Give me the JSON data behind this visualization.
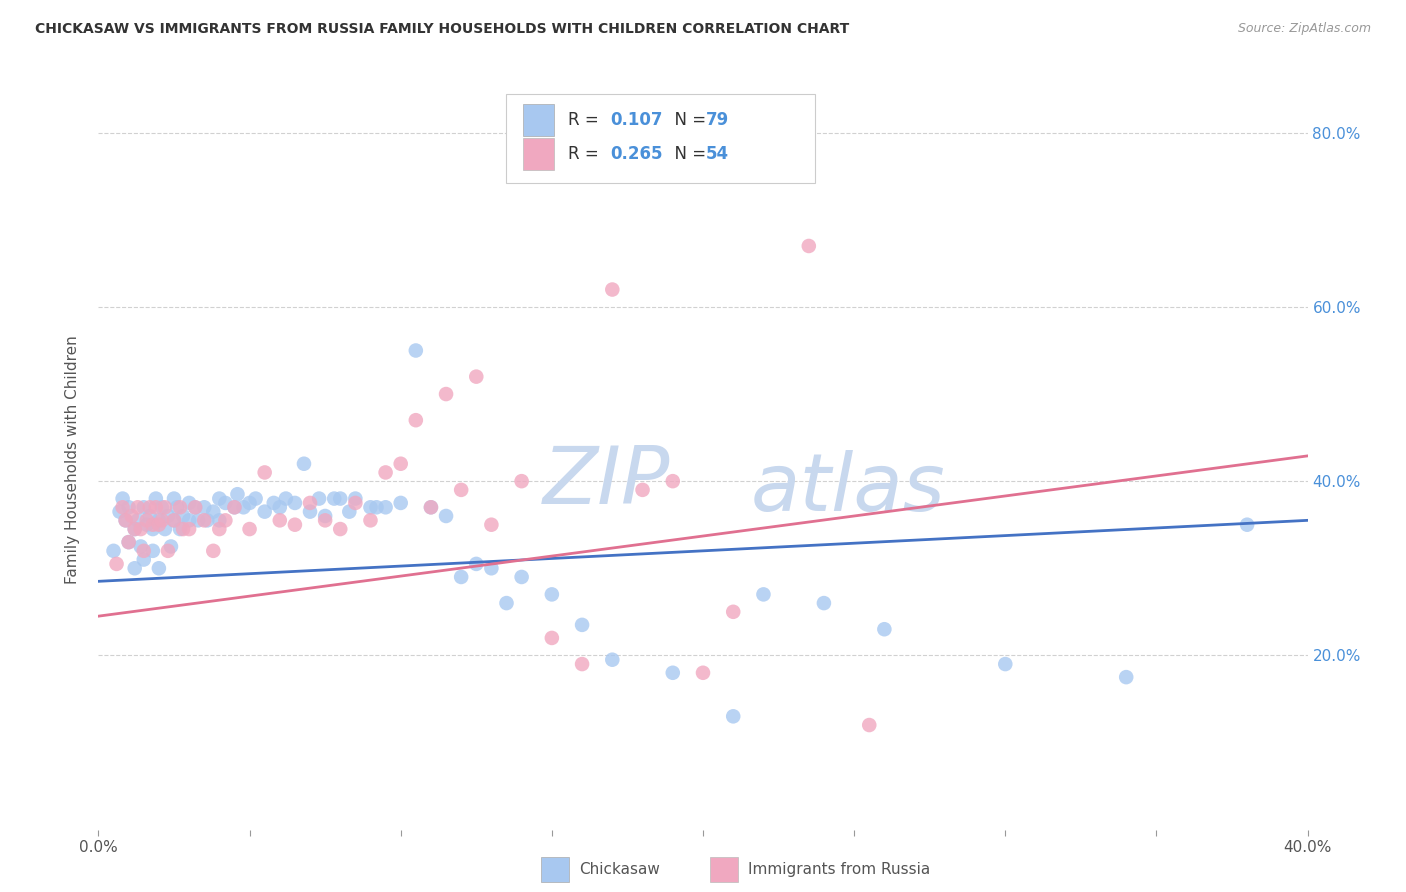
{
  "title": "CHICKASAW VS IMMIGRANTS FROM RUSSIA FAMILY HOUSEHOLDS WITH CHILDREN CORRELATION CHART",
  "source": "Source: ZipAtlas.com",
  "ylabel": "Family Households with Children",
  "xlim": [
    0.0,
    0.4
  ],
  "ylim": [
    0.0,
    0.85
  ],
  "yticks": [
    0.2,
    0.4,
    0.6,
    0.8
  ],
  "color_blue": "#a8c8f0",
  "color_pink": "#f0a8c0",
  "line_blue": "#4472c4",
  "line_pink": "#e07090",
  "background_color": "#ffffff",
  "grid_color": "#cccccc",
  "watermark_zip": "ZIP",
  "watermark_atlas": "atlas",
  "blue_x": [
    0.005,
    0.007,
    0.008,
    0.009,
    0.01,
    0.01,
    0.012,
    0.012,
    0.013,
    0.014,
    0.015,
    0.015,
    0.016,
    0.017,
    0.018,
    0.018,
    0.019,
    0.02,
    0.02,
    0.021,
    0.022,
    0.023,
    0.024,
    0.025,
    0.025,
    0.026,
    0.027,
    0.028,
    0.03,
    0.03,
    0.032,
    0.033,
    0.035,
    0.036,
    0.038,
    0.04,
    0.04,
    0.042,
    0.045,
    0.046,
    0.048,
    0.05,
    0.052,
    0.055,
    0.058,
    0.06,
    0.062,
    0.065,
    0.068,
    0.07,
    0.073,
    0.075,
    0.078,
    0.08,
    0.083,
    0.085,
    0.09,
    0.092,
    0.095,
    0.1,
    0.105,
    0.11,
    0.115,
    0.12,
    0.125,
    0.13,
    0.135,
    0.14,
    0.15,
    0.16,
    0.17,
    0.19,
    0.21,
    0.22,
    0.24,
    0.26,
    0.3,
    0.34,
    0.38
  ],
  "blue_y": [
    0.32,
    0.365,
    0.38,
    0.355,
    0.33,
    0.37,
    0.345,
    0.3,
    0.355,
    0.325,
    0.37,
    0.31,
    0.35,
    0.36,
    0.345,
    0.32,
    0.38,
    0.355,
    0.3,
    0.37,
    0.345,
    0.36,
    0.325,
    0.38,
    0.355,
    0.37,
    0.345,
    0.36,
    0.375,
    0.355,
    0.37,
    0.355,
    0.37,
    0.355,
    0.365,
    0.38,
    0.355,
    0.375,
    0.37,
    0.385,
    0.37,
    0.375,
    0.38,
    0.365,
    0.375,
    0.37,
    0.38,
    0.375,
    0.42,
    0.365,
    0.38,
    0.36,
    0.38,
    0.38,
    0.365,
    0.38,
    0.37,
    0.37,
    0.37,
    0.375,
    0.55,
    0.37,
    0.36,
    0.29,
    0.305,
    0.3,
    0.26,
    0.29,
    0.27,
    0.235,
    0.195,
    0.18,
    0.13,
    0.27,
    0.26,
    0.23,
    0.19,
    0.175,
    0.35
  ],
  "pink_x": [
    0.006,
    0.008,
    0.009,
    0.01,
    0.011,
    0.012,
    0.013,
    0.014,
    0.015,
    0.016,
    0.017,
    0.018,
    0.019,
    0.02,
    0.021,
    0.022,
    0.023,
    0.025,
    0.027,
    0.028,
    0.03,
    0.032,
    0.035,
    0.038,
    0.04,
    0.042,
    0.045,
    0.05,
    0.055,
    0.06,
    0.065,
    0.07,
    0.075,
    0.08,
    0.085,
    0.09,
    0.095,
    0.1,
    0.105,
    0.11,
    0.115,
    0.12,
    0.125,
    0.13,
    0.14,
    0.15,
    0.16,
    0.17,
    0.18,
    0.19,
    0.2,
    0.21,
    0.235,
    0.255
  ],
  "pink_y": [
    0.305,
    0.37,
    0.355,
    0.33,
    0.36,
    0.345,
    0.37,
    0.345,
    0.32,
    0.355,
    0.37,
    0.35,
    0.37,
    0.35,
    0.355,
    0.37,
    0.32,
    0.355,
    0.37,
    0.345,
    0.345,
    0.37,
    0.355,
    0.32,
    0.345,
    0.355,
    0.37,
    0.345,
    0.41,
    0.355,
    0.35,
    0.375,
    0.355,
    0.345,
    0.375,
    0.355,
    0.41,
    0.42,
    0.47,
    0.37,
    0.5,
    0.39,
    0.52,
    0.35,
    0.4,
    0.22,
    0.19,
    0.62,
    0.39,
    0.4,
    0.18,
    0.25,
    0.67,
    0.12
  ]
}
